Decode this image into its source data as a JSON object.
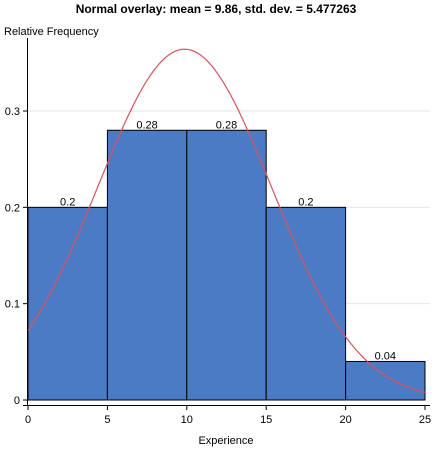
{
  "chart_data": {
    "type": "bar",
    "title": "Normal overlay: mean = 9.86, std. dev. = 5.477263",
    "xlabel": "Experience",
    "ylabel": "Relative Frequency",
    "bins": [
      {
        "x0": 0,
        "x1": 5,
        "value": 0.2,
        "label": "0.2"
      },
      {
        "x0": 5,
        "x1": 10,
        "value": 0.28,
        "label": "0.28"
      },
      {
        "x0": 10,
        "x1": 15,
        "value": 0.28,
        "label": "0.28"
      },
      {
        "x0": 15,
        "x1": 20,
        "value": 0.2,
        "label": "0.2"
      },
      {
        "x0": 20,
        "x1": 25,
        "value": 0.04,
        "label": "0.04"
      }
    ],
    "overlay": {
      "type": "normal",
      "mean": 9.86,
      "std_dev": 5.477263
    },
    "xlim": [
      0,
      25
    ],
    "ylim": [
      0,
      0.3
    ],
    "xticks": [
      0,
      5,
      10,
      15,
      20,
      25
    ],
    "yticks": [
      0,
      0.1,
      0.2,
      0.3
    ],
    "ytick_labels": [
      "0",
      "0.1",
      "0.2",
      "0.3"
    ],
    "grid": true,
    "colors": {
      "bar": "#4a7bc4",
      "bar_edge": "#000000",
      "curve": "#e0505a",
      "grid": "#e6e6e6"
    }
  }
}
